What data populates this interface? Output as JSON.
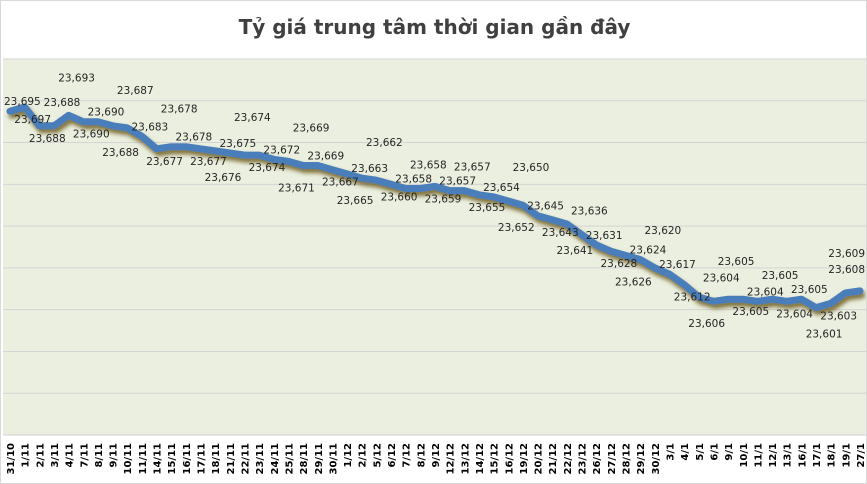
{
  "chart_data": {
    "type": "line",
    "title": "Tỷ giá trung tâm thời gian gần đây",
    "xlabel": "",
    "ylabel": "",
    "ylim": [
      23540,
      23720
    ],
    "grid": true,
    "legend": "none",
    "series_color": "#4a7ebb",
    "categories": [
      "31/10",
      "1/11",
      "2/11",
      "3/11",
      "4/11",
      "7/11",
      "8/11",
      "9/11",
      "10/11",
      "11/11",
      "14/11",
      "15/11",
      "16/11",
      "17/11",
      "18/11",
      "21/11",
      "22/11",
      "23/11",
      "24/11",
      "25/11",
      "28/11",
      "29/11",
      "30/11",
      "1/12",
      "2/12",
      "5/12",
      "6/12",
      "7/12",
      "8/12",
      "9/12",
      "12/12",
      "13/12",
      "14/12",
      "15/12",
      "16/12",
      "19/12",
      "20/12",
      "21/12",
      "22/12",
      "23/12",
      "26/12",
      "27/12",
      "28/12",
      "29/12",
      "30/12",
      "3/1",
      "4/1",
      "5/1",
      "6/1",
      "9/1",
      "10/1",
      "11/1",
      "12/1",
      "13/1",
      "16/1",
      "17/1",
      "18/1",
      "19/1",
      "27/1"
    ],
    "series": [
      {
        "name": "Tỷ giá trung tâm",
        "values": [
          23695,
          23697,
          23688,
          23688,
          23693,
          23690,
          23690,
          23688,
          23687,
          23683,
          23677,
          23678,
          23678,
          23677,
          23676,
          23675,
          23674,
          23674,
          23672,
          23671,
          23669,
          23669,
          23667,
          23665,
          23663,
          23662,
          23660,
          23658,
          23658,
          23659,
          23657,
          23657,
          23655,
          23654,
          23652,
          23650,
          23645,
          23643,
          23641,
          23636,
          23631,
          23628,
          23626,
          23624,
          23620,
          23617,
          23612,
          23606,
          23604,
          23605,
          23605,
          23604,
          23605,
          23604,
          23605,
          23601,
          23603,
          23608,
          23609
        ]
      }
    ]
  }
}
